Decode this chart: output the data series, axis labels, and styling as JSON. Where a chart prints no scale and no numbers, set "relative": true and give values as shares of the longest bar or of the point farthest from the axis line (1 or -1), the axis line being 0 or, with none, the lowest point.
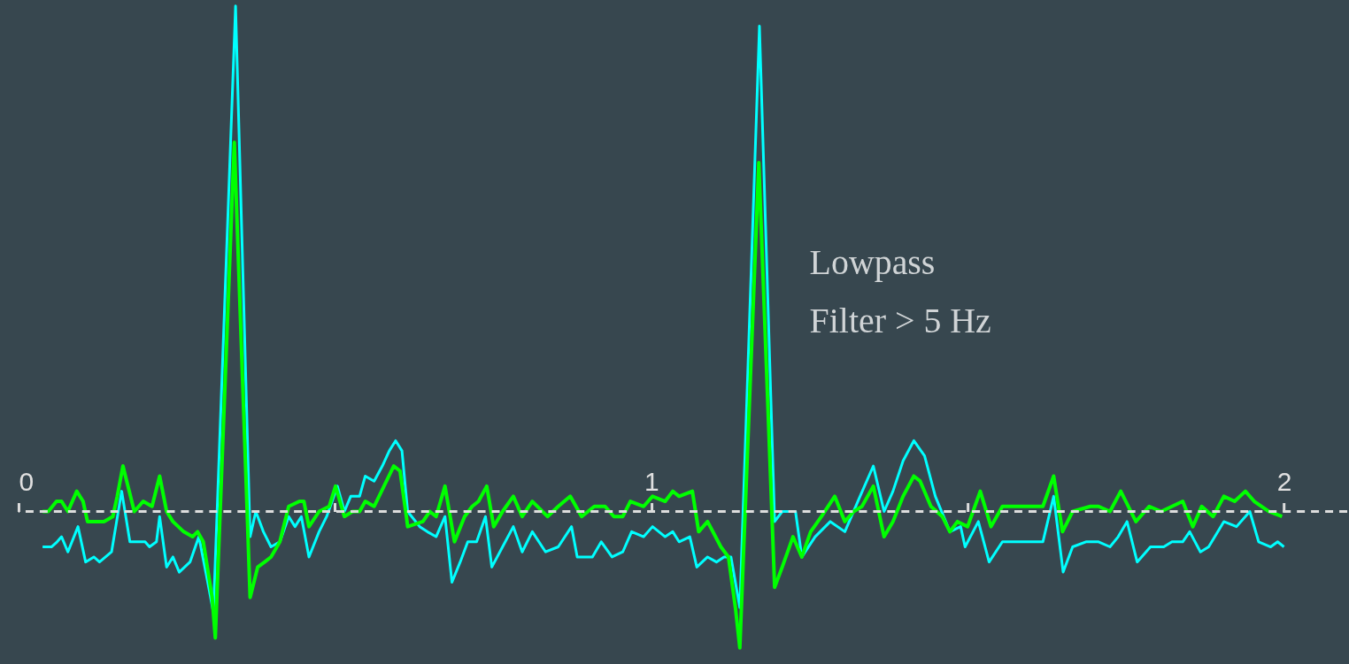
{
  "chart_data": {
    "type": "line",
    "relative": true,
    "xlim": [
      0,
      2.1
    ],
    "xticks": [
      0,
      {
        "value": 0.5,
        "label": null
      },
      1,
      {
        "value": 1.5,
        "label": null
      },
      2
    ],
    "grid": false,
    "marker": "none",
    "ref_lines": [
      {
        "axis": "y",
        "value": 0,
        "color": "#dddddd",
        "line_style": "dashed"
      }
    ],
    "annotations": [
      "Lowpass\nFilter > 5 Hz"
    ],
    "series": [
      {
        "color": "#00ffff",
        "x": [
          0.038,
          0.052,
          0.061,
          0.068,
          0.078,
          0.094,
          0.106,
          0.119,
          0.128,
          0.147,
          0.163,
          0.176,
          0.19,
          0.2,
          0.207,
          0.218,
          0.223,
          0.234,
          0.244,
          0.254,
          0.271,
          0.285,
          0.299,
          0.308,
          0.343,
          0.366,
          0.375,
          0.387,
          0.399,
          0.413,
          0.427,
          0.437,
          0.447,
          0.459,
          0.475,
          0.487,
          0.504,
          0.515,
          0.525,
          0.539,
          0.548,
          0.562,
          0.575,
          0.586,
          0.596,
          0.606,
          0.615,
          0.634,
          0.646,
          0.66,
          0.674,
          0.685,
          0.698,
          0.71,
          0.724,
          0.738,
          0.748,
          0.765,
          0.782,
          0.796,
          0.812,
          0.833,
          0.853,
          0.874,
          0.883,
          0.907,
          0.921,
          0.938,
          0.955,
          0.969,
          0.988,
          1.002,
          1.022,
          1.034,
          1.044,
          1.061,
          1.072,
          1.089,
          1.103,
          1.115,
          1.126,
          1.14,
          1.171,
          1.195,
          1.207,
          1.228,
          1.238,
          1.259,
          1.283,
          1.306,
          1.33,
          1.351,
          1.368,
          1.382,
          1.398,
          1.415,
          1.432,
          1.449,
          1.472,
          1.489,
          1.496,
          1.517,
          1.534,
          1.555,
          1.572,
          1.588,
          1.602,
          1.619,
          1.636,
          1.651,
          1.666,
          1.687,
          1.707,
          1.725,
          1.738,
          1.752,
          1.768,
          1.789,
          1.81,
          1.823,
          1.84,
          1.851,
          1.868,
          1.881,
          1.905,
          1.925,
          1.946,
          1.96,
          1.979,
          1.99,
          2.0
        ],
        "values": [
          -0.07,
          -0.07,
          -0.06,
          -0.05,
          -0.08,
          -0.03,
          -0.1,
          -0.09,
          -0.1,
          -0.08,
          0.04,
          -0.06,
          -0.06,
          -0.06,
          -0.07,
          -0.06,
          -0.01,
          -0.11,
          -0.09,
          -0.12,
          -0.1,
          -0.05,
          -0.14,
          -0.2,
          1.0,
          -0.05,
          0,
          -0.04,
          -0.07,
          -0.06,
          -0.01,
          -0.03,
          -0.01,
          -0.09,
          -0.04,
          -0.01,
          0.05,
          0,
          0.03,
          0.03,
          0.07,
          0.06,
          0.09,
          0.12,
          0.14,
          0.12,
          0,
          -0.03,
          -0.04,
          -0.05,
          -0.01,
          -0.14,
          -0.1,
          -0.06,
          -0.06,
          -0.01,
          -0.11,
          -0.07,
          -0.03,
          -0.08,
          -0.04,
          -0.08,
          -0.07,
          -0.03,
          -0.09,
          -0.09,
          -0.06,
          -0.09,
          -0.08,
          -0.04,
          -0.05,
          -0.03,
          -0.05,
          -0.04,
          -0.06,
          -0.05,
          -0.11,
          -0.09,
          -0.1,
          -0.09,
          -0.09,
          -0.19,
          0.96,
          -0.02,
          0,
          0,
          -0.09,
          -0.05,
          -0.02,
          -0.04,
          0.03,
          0.09,
          0,
          0.04,
          0.1,
          0.14,
          0.11,
          0.03,
          -0.04,
          -0.03,
          -0.07,
          -0.02,
          -0.1,
          -0.06,
          -0.06,
          -0.06,
          -0.06,
          -0.06,
          0.03,
          -0.12,
          -0.07,
          -0.06,
          -0.06,
          -0.07,
          -0.05,
          -0.02,
          -0.1,
          -0.07,
          -0.07,
          -0.06,
          -0.06,
          -0.04,
          -0.08,
          -0.07,
          -0.02,
          -0.03,
          0,
          -0.06,
          -0.07,
          -0.06,
          -0.07
        ]
      },
      {
        "color": "#00ff00",
        "x": [
          0.038,
          0.047,
          0.06,
          0.068,
          0.078,
          0.092,
          0.102,
          0.109,
          0.119,
          0.135,
          0.149,
          0.156,
          0.165,
          0.173,
          0.183,
          0.197,
          0.211,
          0.223,
          0.234,
          0.244,
          0.261,
          0.275,
          0.283,
          0.292,
          0.306,
          0.311,
          0.341,
          0.366,
          0.378,
          0.389,
          0.399,
          0.413,
          0.427,
          0.444,
          0.451,
          0.459,
          0.475,
          0.491,
          0.501,
          0.515,
          0.528,
          0.539,
          0.548,
          0.562,
          0.593,
          0.603,
          0.613,
          0.615,
          0.639,
          0.65,
          0.66,
          0.674,
          0.689,
          0.705,
          0.717,
          0.727,
          0.74,
          0.751,
          0.765,
          0.782,
          0.796,
          0.812,
          0.836,
          0.853,
          0.872,
          0.89,
          0.91,
          0.927,
          0.941,
          0.955,
          0.967,
          0.988,
          1.002,
          1.022,
          1.034,
          1.044,
          1.065,
          1.075,
          1.089,
          1.11,
          1.122,
          1.133,
          1.14,
          1.17,
          1.195,
          1.207,
          1.224,
          1.238,
          1.252,
          1.269,
          1.29,
          1.306,
          1.32,
          1.333,
          1.351,
          1.368,
          1.382,
          1.398,
          1.415,
          1.425,
          1.442,
          1.46,
          1.472,
          1.484,
          1.5,
          1.52,
          1.537,
          1.555,
          1.572,
          1.598,
          1.619,
          1.636,
          1.65,
          1.666,
          1.694,
          1.707,
          1.725,
          1.742,
          1.766,
          1.787,
          1.806,
          1.823,
          1.84,
          1.856,
          1.87,
          1.888,
          1.905,
          1.922,
          1.939,
          1.953,
          1.976,
          1.997
        ],
        "values": [
          0,
          0,
          0.02,
          0.02,
          0,
          0.04,
          0.02,
          -0.02,
          -0.02,
          -0.02,
          -0.01,
          0.03,
          0.09,
          0.05,
          0,
          0.02,
          0.01,
          0.07,
          0,
          -0.02,
          -0.04,
          -0.05,
          -0.04,
          -0.06,
          -0.17,
          -0.25,
          0.73,
          -0.17,
          -0.11,
          -0.1,
          -0.09,
          -0.06,
          0.01,
          0.02,
          0.02,
          -0.03,
          0,
          0.01,
          0.05,
          -0.01,
          0,
          0,
          0.02,
          0.01,
          0.09,
          0.08,
          -0.01,
          -0.03,
          -0.02,
          0,
          -0.01,
          0.05,
          -0.06,
          -0.01,
          0.01,
          0.02,
          0.05,
          -0.03,
          0,
          0.03,
          -0.01,
          0.02,
          -0.01,
          0.01,
          0.03,
          -0.01,
          0.01,
          0.01,
          -0.01,
          -0.01,
          0.02,
          0.01,
          0.03,
          0.02,
          0.04,
          0.03,
          0.04,
          -0.04,
          -0.02,
          -0.07,
          -0.09,
          -0.19,
          -0.27,
          0.69,
          -0.15,
          -0.11,
          -0.05,
          -0.09,
          -0.04,
          -0.01,
          0.03,
          -0.02,
          0,
          0.01,
          0.05,
          -0.05,
          -0.02,
          0.03,
          0.07,
          0.06,
          0.01,
          -0.01,
          -0.04,
          -0.02,
          -0.03,
          0.04,
          -0.03,
          0.01,
          0.01,
          0.01,
          0.01,
          0.07,
          -0.04,
          0,
          0.01,
          0.01,
          0,
          0.04,
          -0.02,
          0.01,
          0,
          0.01,
          0.02,
          -0.03,
          0.01,
          -0.01,
          0.03,
          0.02,
          0.04,
          0.02,
          0,
          -0.01
        ]
      }
    ]
  }
}
